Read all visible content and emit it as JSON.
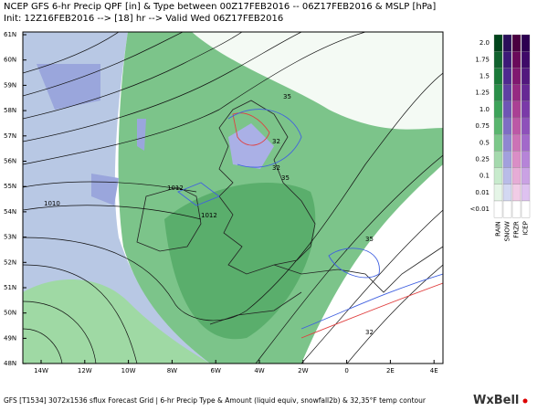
{
  "header": {
    "line1": "NCEP GFS 6-hr Precip QPF [in] & Type between 00Z17FEB2016 -- 06Z17FEB2016 & MSLP [hPa]",
    "line2": "Init: 12Z16FEB2016 --> [18] hr --> Valid Wed 06Z17FEB2016"
  },
  "map": {
    "latitude_labels": [
      "61N",
      "60N",
      "59N",
      "58N",
      "57N",
      "56N",
      "55N",
      "54N",
      "53N",
      "52N",
      "51N",
      "50N",
      "49N",
      "48N"
    ],
    "longitude_labels": [
      "14W",
      "12W",
      "10W",
      "8W",
      "6W",
      "4W",
      "2W",
      "0",
      "2E",
      "4E"
    ],
    "contour_labels": [
      "1010",
      "1012",
      "1012",
      "35",
      "32",
      "35",
      "32",
      "35",
      "32"
    ]
  },
  "legend": {
    "levels": [
      "2.0",
      "1.75",
      "1.5",
      "1.25",
      "1.0",
      "0.75",
      "0.5",
      "0.25",
      "0.1",
      "0.01",
      "<0.01"
    ],
    "types": [
      "RAIN",
      "SNOW",
      "FRZR",
      "ICEP"
    ]
  },
  "footer": {
    "text": "GFS [T1534] 3072x1536 sflux Forecast Grid | 6-hr Precip Type & Amount (liquid equiv, snowfall2b) & 32,35°F temp contour",
    "brand": "WxBell"
  }
}
